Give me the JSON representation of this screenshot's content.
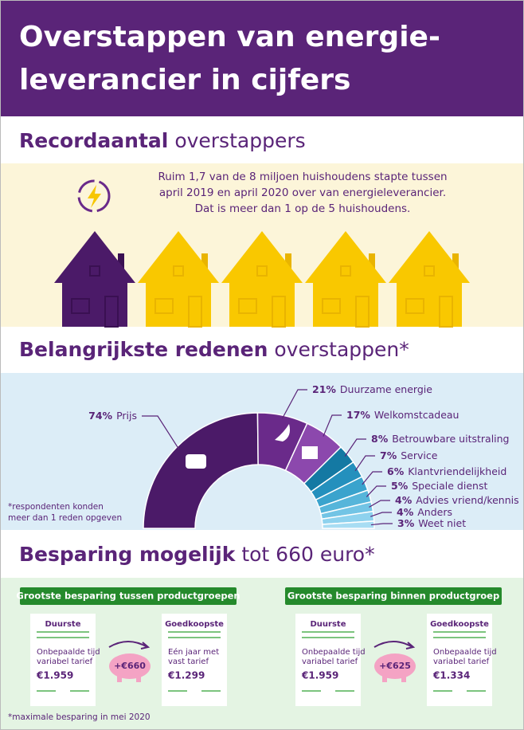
{
  "header": {
    "title_lines": [
      "Overstappen van energie-",
      "leverancier in cijfers"
    ]
  },
  "switchers": {
    "title_bold": "Recordaantal",
    "title_rest": "overstappers",
    "text_lines": [
      "Ruim 1,7 van de 8 miljoen huishoudens stapte tussen",
      "april 2019 en april 2020 over van energieleverancier.",
      "Dat is meer dan 1 op de 5 huishoudens."
    ]
  },
  "reasons": {
    "title_bold": "Belangrijkste redenen",
    "title_rest": "overstappen*",
    "footnote_lines": [
      "*respondenten konden",
      "meer dan 1 reden opgeven"
    ]
  },
  "chart_data": {
    "type": "half-donut",
    "categories": [
      "Prijs",
      "Duurzame energie",
      "Welkomstcadeau",
      "Betrouwbare uitstraling",
      "Service",
      "Klantvriendelijkheid",
      "Speciale dienst",
      "Advies vriend/kennis",
      "Anders",
      "Weet niet"
    ],
    "values": [
      74,
      21,
      17,
      8,
      7,
      6,
      5,
      4,
      4,
      3
    ],
    "value_labels": [
      "74%",
      "21%",
      "17%",
      "8%",
      "7%",
      "6%",
      "5%",
      "4%",
      "4%",
      "3%"
    ],
    "colors": [
      "#4b1a68",
      "#6a2a8a",
      "#8c48ad",
      "#1479a3",
      "#2490bd",
      "#3aa3cd",
      "#56b5da",
      "#72c4e5",
      "#8ed2ee",
      "#a8ddf3"
    ]
  },
  "savings": {
    "title_bold": "Besparing mogelijk",
    "title_rest": "tot 660 euro*",
    "footnote": "*maximale besparing in mei 2020",
    "groups": [
      {
        "title": "Grootste besparing tussen productgroepen",
        "saving": "+€660",
        "cards": [
          {
            "label": "Duurste",
            "desc": [
              "Onbepaalde tijd",
              "variabel tarief"
            ],
            "price": "€1.959"
          },
          {
            "label": "Goedkoopste",
            "desc": [
              "Eén jaar met",
              "vast tarief"
            ],
            "price": "€1.299"
          }
        ]
      },
      {
        "title": "Grootste besparing binnen productgroep",
        "saving": "+€625",
        "cards": [
          {
            "label": "Duurste",
            "desc": [
              "Onbepaalde tijd",
              "variabel tarief"
            ],
            "price": "€1.959"
          },
          {
            "label": "Goedkoopste",
            "desc": [
              "Onbepaalde tijd",
              "variabel tarief"
            ],
            "price": "€1.334"
          }
        ]
      }
    ]
  }
}
